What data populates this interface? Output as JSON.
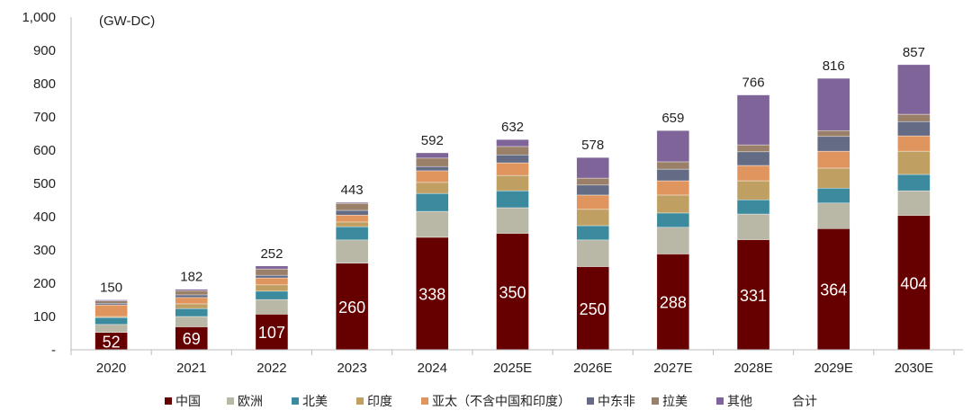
{
  "chart_data": {
    "type": "bar",
    "stacked": true,
    "unit_label": "(GW-DC)",
    "categories": [
      "2020",
      "2021",
      "2022",
      "2023",
      "2024",
      "2025E",
      "2026E",
      "2027E",
      "2028E",
      "2029E",
      "2030E"
    ],
    "ylim": [
      0,
      1000
    ],
    "yticks": [
      "-",
      "100",
      "200",
      "300",
      "400",
      "500",
      "600",
      "700",
      "800",
      "900",
      "1,000"
    ],
    "ytick_values": [
      0,
      100,
      200,
      300,
      400,
      500,
      600,
      700,
      800,
      900,
      1000
    ],
    "grid": false,
    "legend_position": "bottom",
    "series": [
      {
        "name": "中国",
        "color": "#660000",
        "values": [
          52,
          69,
          107,
          260,
          338,
          350,
          250,
          288,
          331,
          364,
          404
        ]
      },
      {
        "name": "欧洲",
        "color": "#b9b8a6",
        "values": [
          24,
          31,
          44,
          70,
          78,
          77,
          80,
          80,
          77,
          77,
          74
        ]
      },
      {
        "name": "北美",
        "color": "#3b8a9e",
        "values": [
          21,
          24,
          25,
          40,
          54,
          51,
          43,
          43,
          43,
          45,
          49
        ]
      },
      {
        "name": "印度",
        "color": "#c0a062",
        "values": [
          3,
          14,
          19,
          14,
          33,
          46,
          49,
          54,
          57,
          60,
          70
        ]
      },
      {
        "name": "亚太（不含中国和印度）",
        "color": "#e0955f",
        "values": [
          35,
          19,
          21,
          21,
          35,
          38,
          43,
          43,
          46,
          51,
          46
        ]
      },
      {
        "name": "中东非",
        "color": "#636b85",
        "values": [
          5,
          8,
          8,
          14,
          13,
          24,
          30,
          35,
          41,
          44,
          43
        ]
      },
      {
        "name": "拉美",
        "color": "#9a8068",
        "values": [
          7,
          13,
          19,
          21,
          25,
          25,
          21,
          22,
          21,
          18,
          22
        ]
      },
      {
        "name": "其他",
        "color": "#7e6499",
        "values": [
          3,
          4,
          9,
          3,
          16,
          21,
          62,
          94,
          150,
          157,
          149
        ]
      }
    ],
    "china_labels": [
      "52",
      "69",
      "107",
      "260",
      "338",
      "350",
      "250",
      "288",
      "331",
      "364",
      "404"
    ],
    "totals": [
      "150",
      "182",
      "252",
      "443",
      "592",
      "632",
      "578",
      "659",
      "766",
      "816",
      "857"
    ],
    "total_legend": "合计"
  }
}
